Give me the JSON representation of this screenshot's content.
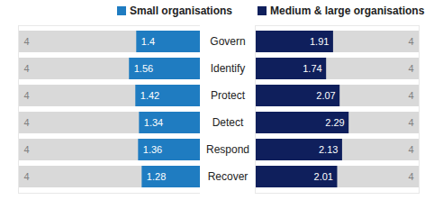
{
  "chart_data": {
    "type": "bar",
    "orientation": "horizontal",
    "categories": [
      "Govern",
      "Identify",
      "Protect",
      "Detect",
      "Respond",
      "Recover"
    ],
    "series": [
      {
        "name": "Small organisations",
        "color": "#1f7cc1",
        "values": [
          1.4,
          1.56,
          1.42,
          1.34,
          1.36,
          1.28
        ]
      },
      {
        "name": "Medium & large organisations",
        "color": "#0f1f5c",
        "values": [
          1.91,
          1.74,
          2.07,
          2.29,
          2.13,
          2.01
        ]
      }
    ],
    "max_values": [
      4,
      4,
      4,
      4,
      4,
      4
    ],
    "xlim": [
      0,
      4
    ],
    "data_labels": true,
    "tick_labels": "y",
    "legend": "top"
  }
}
